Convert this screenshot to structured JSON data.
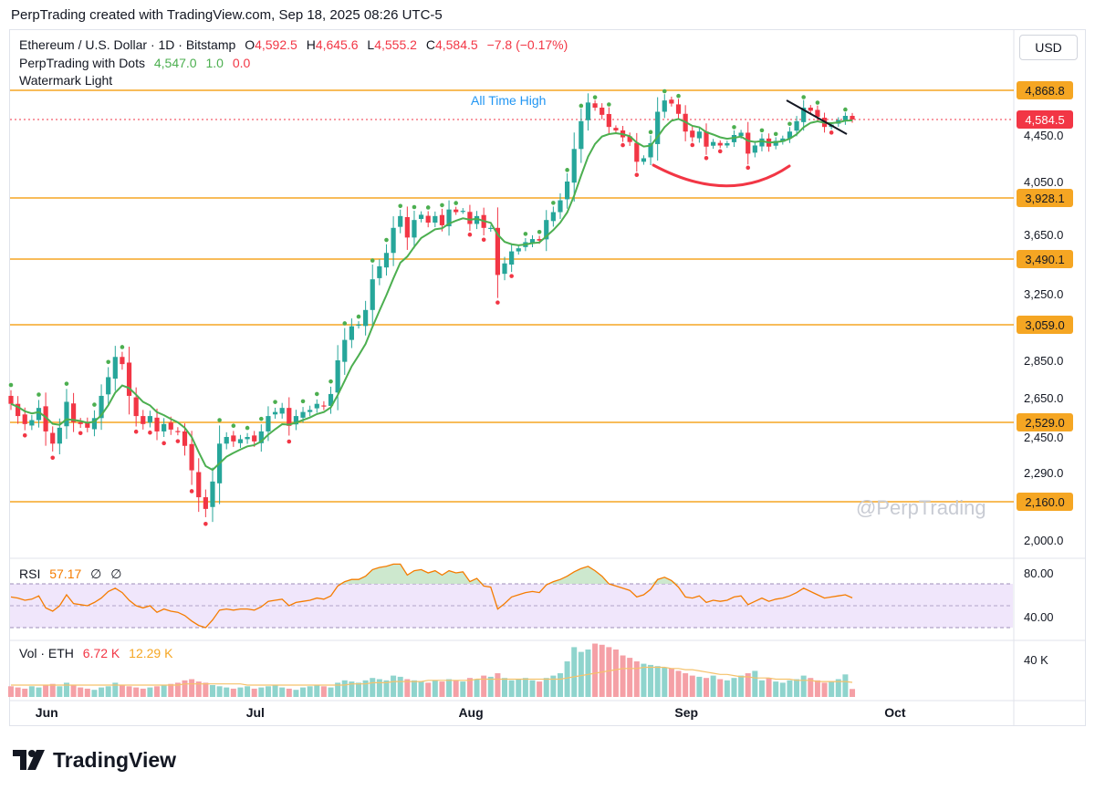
{
  "header": {
    "note": "PerpTrading created with TradingView.com, Sep 18, 2025 08:26 UTC-5"
  },
  "legend": {
    "symbol": "Ethereum / U.S. Dollar · 1D · Bitstamp",
    "o_label": "O",
    "o_value": "4,592.5",
    "h_label": "H",
    "h_value": "4,645.6",
    "l_label": "L",
    "l_value": "4,555.2",
    "c_label": "C",
    "c_value": "4,584.5",
    "change": "−7.8 (−0.17%)",
    "indicator_name": "PerpTrading with Dots",
    "indicator_v1": "4,547.0",
    "indicator_v2": "1.0",
    "indicator_v3": "0.0",
    "watermark_name": "Watermark Light"
  },
  "currency": "USD",
  "annotation": "All Time High",
  "watermark": "@PerpTrading",
  "brand": "TradingView",
  "rsi_legend": {
    "label": "RSI",
    "value": "57.17",
    "extra1": "∅",
    "extra2": "∅"
  },
  "vol_legend": {
    "label": "Vol · ETH",
    "value": "6.72 K",
    "ma": "12.29 K"
  },
  "colors": {
    "up": "#26a69a",
    "down": "#f23645",
    "level": "#f5a623",
    "ma": "#4caf50",
    "rsi": "#f57c00"
  },
  "chart_data": {
    "type": "candlestick",
    "price_axis_ticks": [
      "4,450.0",
      "4,050.0",
      "3,650.0",
      "3,250.0",
      "2,850.0",
      "2,650.0",
      "2,450.0",
      "2,290.0",
      "2,000.0"
    ],
    "horizontal_levels": [
      {
        "value": 4868.8,
        "label": "4,868.8"
      },
      {
        "value": 3928.1,
        "label": "3,928.1"
      },
      {
        "value": 3490.1,
        "label": "3,490.1"
      },
      {
        "value": 3059.0,
        "label": "3,059.0"
      },
      {
        "value": 2529.0,
        "label": "2,529.0"
      },
      {
        "value": 2160.0,
        "label": "2,160.0"
      }
    ],
    "last_price": {
      "value": 4584.5,
      "label": "4,584.5"
    },
    "time_axis_ticks": [
      "Jun",
      "Jul",
      "Aug",
      "Sep",
      "Oct"
    ],
    "start_date": "2025-05-30",
    "closes": [
      2620,
      2560,
      2520,
      2540,
      2600,
      2480,
      2420,
      2500,
      2630,
      2530,
      2520,
      2500,
      2550,
      2660,
      2760,
      2870,
      2830,
      2660,
      2560,
      2520,
      2560,
      2480,
      2520,
      2490,
      2480,
      2410,
      2300,
      2180,
      2130,
      2250,
      2420,
      2450,
      2430,
      2440,
      2450,
      2430,
      2480,
      2560,
      2580,
      2600,
      2510,
      2560,
      2580,
      2590,
      2620,
      2610,
      2670,
      2850,
      2970,
      3050,
      3060,
      3150,
      3350,
      3440,
      3530,
      3700,
      3790,
      3630,
      3760,
      3800,
      3740,
      3790,
      3720,
      3840,
      3820,
      3830,
      3730,
      3790,
      3700,
      3700,
      3380,
      3460,
      3540,
      3560,
      3600,
      3620,
      3610,
      3760,
      3820,
      3910,
      4050,
      4330,
      4570,
      4750,
      4700,
      4630,
      4520,
      4490,
      4430,
      4390,
      4220,
      4250,
      4380,
      4660,
      4770,
      4740,
      4640,
      4480,
      4430,
      4480,
      4350,
      4390,
      4360,
      4380,
      4450,
      4470,
      4290,
      4360,
      4420,
      4350,
      4400,
      4420,
      4480,
      4570,
      4700,
      4670,
      4610,
      4520,
      4540,
      4580,
      4620,
      4584.5
    ],
    "rsi": {
      "ticks": [
        "80.00",
        "40.00"
      ],
      "band": [
        30,
        70
      ],
      "values": [
        58,
        57,
        55,
        56,
        59,
        48,
        45,
        50,
        60,
        52,
        51,
        50,
        53,
        57,
        63,
        66,
        62,
        55,
        50,
        48,
        50,
        44,
        47,
        45,
        44,
        41,
        36,
        32,
        30,
        37,
        46,
        47,
        46,
        47,
        47,
        46,
        49,
        54,
        55,
        56,
        50,
        53,
        54,
        55,
        57,
        56,
        59,
        68,
        72,
        74,
        74,
        77,
        83,
        85,
        86,
        88,
        88,
        78,
        82,
        83,
        80,
        82,
        78,
        82,
        80,
        81,
        72,
        75,
        68,
        67,
        47,
        52,
        58,
        60,
        62,
        63,
        62,
        69,
        72,
        74,
        77,
        81,
        84,
        86,
        82,
        77,
        70,
        68,
        66,
        64,
        58,
        60,
        65,
        74,
        76,
        73,
        67,
        58,
        57,
        59,
        53,
        55,
        54,
        55,
        58,
        59,
        51,
        54,
        57,
        54,
        56,
        57,
        59,
        62,
        66,
        63,
        60,
        57,
        58,
        59,
        60,
        57.17
      ]
    },
    "volume": {
      "ticks": [
        "40 K"
      ],
      "values": [
        9,
        8,
        7,
        9,
        8,
        10,
        11,
        9,
        12,
        10,
        8,
        7,
        6,
        8,
        9,
        12,
        10,
        9,
        8,
        7,
        8,
        9,
        10,
        11,
        12,
        14,
        15,
        13,
        12,
        10,
        9,
        8,
        7,
        8,
        9,
        7,
        8,
        9,
        10,
        8,
        7,
        6,
        8,
        9,
        10,
        9,
        8,
        12,
        14,
        13,
        12,
        14,
        16,
        15,
        14,
        18,
        17,
        15,
        14,
        13,
        12,
        14,
        13,
        15,
        14,
        13,
        16,
        15,
        18,
        17,
        20,
        16,
        14,
        15,
        16,
        14,
        13,
        16,
        18,
        20,
        30,
        42,
        38,
        40,
        45,
        44,
        42,
        40,
        35,
        33,
        30,
        28,
        27,
        26,
        25,
        24,
        22,
        20,
        18,
        17,
        16,
        18,
        15,
        14,
        16,
        18,
        20,
        22,
        14,
        16,
        13,
        12,
        14,
        15,
        18,
        16,
        14,
        12,
        13,
        15,
        19,
        6.72
      ],
      "ma": [
        10,
        10,
        10,
        10,
        10,
        10,
        10,
        10,
        10,
        10,
        10,
        10,
        10,
        10,
        10,
        10,
        10,
        10,
        10,
        10,
        10,
        10,
        10,
        10,
        10,
        11,
        11,
        11,
        11,
        11,
        11,
        11,
        11,
        11,
        10,
        10,
        10,
        10,
        10,
        10,
        10,
        10,
        10,
        10,
        10,
        10,
        10,
        10,
        10,
        11,
        11,
        11,
        12,
        12,
        12,
        13,
        13,
        13,
        13,
        13,
        14,
        14,
        14,
        14,
        14,
        14,
        14,
        15,
        15,
        15,
        15,
        15,
        15,
        15,
        15,
        15,
        15,
        15,
        15,
        15,
        16,
        17,
        18,
        19,
        20,
        21,
        22,
        23,
        24,
        24,
        24,
        25,
        25,
        25,
        25,
        24,
        24,
        23,
        23,
        22,
        21,
        20,
        19,
        19,
        18,
        17,
        17,
        16,
        16,
        16,
        15,
        15,
        15,
        14,
        14,
        14,
        13,
        13,
        13,
        13,
        13,
        12.29
      ]
    }
  }
}
